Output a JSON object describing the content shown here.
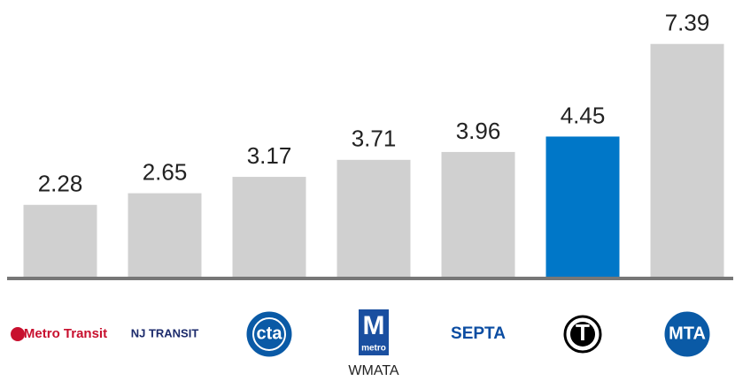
{
  "chart_data": {
    "type": "bar",
    "categories": [
      "Metro Transit",
      "NJ TRANSIT",
      "cta",
      "M",
      "SEPTA",
      "T",
      "MTA"
    ],
    "values": [
      2.28,
      2.65,
      3.17,
      3.71,
      3.96,
      4.45,
      7.39
    ],
    "colors": [
      "#d0d0d0",
      "#d0d0d0",
      "#d0d0d0",
      "#d0d0d0",
      "#d0d0d0",
      "#0077c8",
      "#d0d0d0"
    ],
    "ylim": [
      0,
      8
    ],
    "annotations": [
      "metro",
      "WMATA"
    ]
  }
}
